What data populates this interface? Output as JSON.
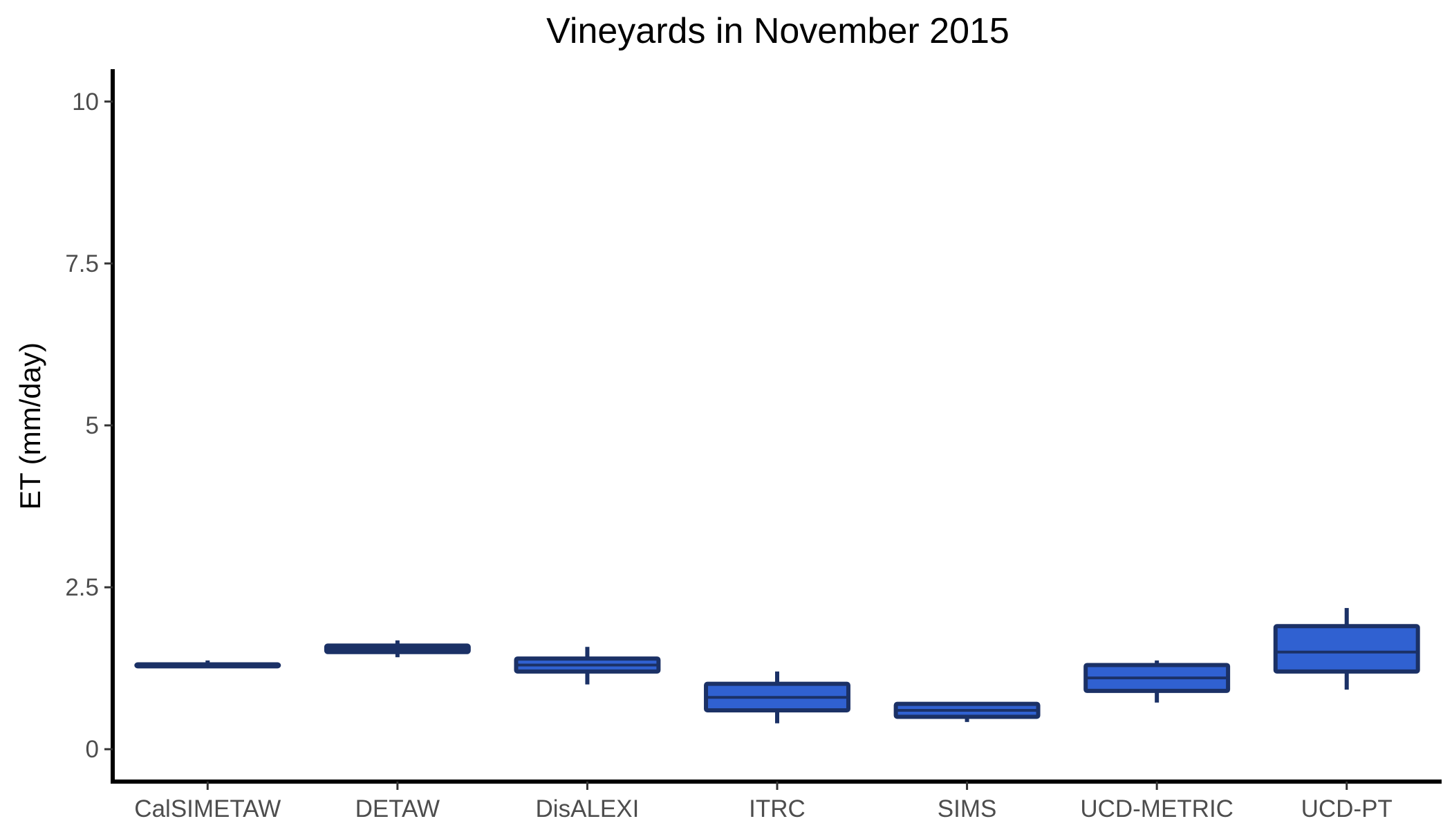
{
  "chart_data": {
    "type": "boxplot",
    "title": "Vineyards in November 2015",
    "xlabel": "",
    "ylabel": "ET (mm/day)",
    "ylim": [
      -0.5,
      10.5
    ],
    "yticks": [
      0,
      2.5,
      5,
      7.5,
      10
    ],
    "ytick_labels": [
      "0",
      "2.5",
      "5",
      "7.5",
      "10"
    ],
    "grid": false,
    "legend": "none",
    "colors": {
      "box_fill": "#3061D1",
      "box_stroke": "#1B3166",
      "axis": "#000000"
    },
    "categories": [
      "CalSIMETAW",
      "DETAW",
      "DisALEXI",
      "ITRC",
      "SIMS",
      "UCD-METRIC",
      "UCD-PT"
    ],
    "boxes": [
      {
        "category": "CalSIMETAW",
        "min": 1.28,
        "q1": 1.28,
        "median": 1.3,
        "q3": 1.31,
        "max": 1.37
      },
      {
        "category": "DETAW",
        "min": 1.42,
        "q1": 1.5,
        "median": 1.55,
        "q3": 1.6,
        "max": 1.68
      },
      {
        "category": "DisALEXI",
        "min": 1.0,
        "q1": 1.2,
        "median": 1.3,
        "q3": 1.4,
        "max": 1.58
      },
      {
        "category": "ITRC",
        "min": 0.4,
        "q1": 0.6,
        "median": 0.8,
        "q3": 1.01,
        "max": 1.2
      },
      {
        "category": "SIMS",
        "min": 0.42,
        "q1": 0.5,
        "median": 0.6,
        "q3": 0.7,
        "max": 0.72
      },
      {
        "category": "UCD-METRIC",
        "min": 0.72,
        "q1": 0.9,
        "median": 1.1,
        "q3": 1.3,
        "max": 1.37
      },
      {
        "category": "UCD-PT",
        "min": 0.92,
        "q1": 1.2,
        "median": 1.5,
        "q3": 1.9,
        "max": 2.18
      }
    ]
  }
}
